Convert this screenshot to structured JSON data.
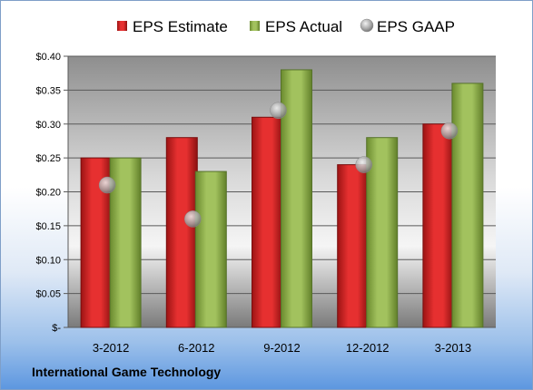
{
  "footer_title": "International Game Technology",
  "chart_data": {
    "type": "bar",
    "categories": [
      "3-2012",
      "6-2012",
      "9-2012",
      "12-2012",
      "3-2013"
    ],
    "series": [
      {
        "name": "EPS Estimate",
        "kind": "bar",
        "color": "#e02a2a",
        "values": [
          0.25,
          0.28,
          0.31,
          0.24,
          0.3
        ]
      },
      {
        "name": "EPS Actual",
        "kind": "bar",
        "color": "#9bbb59",
        "values": [
          0.25,
          0.23,
          0.38,
          0.28,
          0.36
        ]
      },
      {
        "name": "EPS GAAP",
        "kind": "marker",
        "color": "#b0b0b0",
        "values": [
          0.21,
          0.16,
          0.32,
          0.24,
          0.29
        ]
      }
    ],
    "yticks": [
      "$-",
      "$0.05",
      "$0.10",
      "$0.15",
      "$0.20",
      "$0.25",
      "$0.30",
      "$0.35",
      "$0.40"
    ],
    "ylim": [
      0,
      0.4
    ],
    "grid": true,
    "legend_position": "top"
  }
}
